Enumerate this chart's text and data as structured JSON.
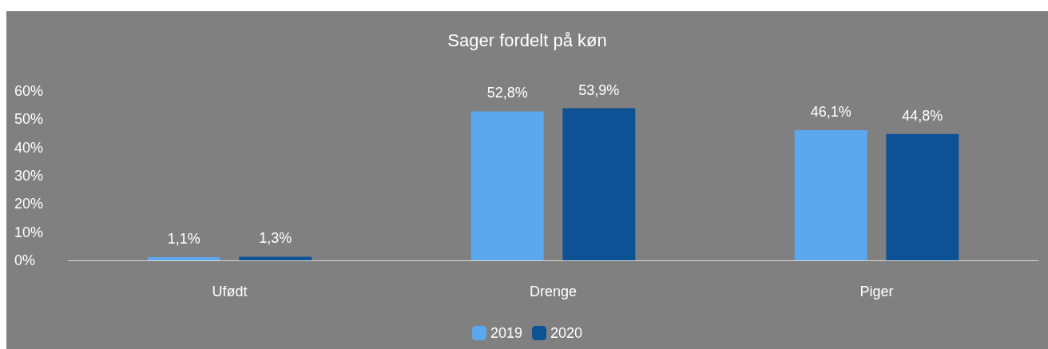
{
  "chart_data": {
    "type": "bar",
    "title": "Sager fordelt på køn",
    "categories": [
      "Ufødt",
      "Drenge",
      "Piger"
    ],
    "series": [
      {
        "name": "2019",
        "color": "#5ba8ef",
        "values": [
          1.1,
          52.8,
          46.1
        ],
        "value_labels": [
          "1,1%",
          "52,8%",
          "46,1%"
        ]
      },
      {
        "name": "2020",
        "color": "#0e5296",
        "values": [
          1.3,
          53.9,
          44.8
        ],
        "value_labels": [
          "1,3%",
          "53,9%",
          "44,8%"
        ]
      }
    ],
    "ylim": [
      0,
      60
    ],
    "yticks": [
      {
        "value": 0,
        "label": "0%"
      },
      {
        "value": 10,
        "label": "10%"
      },
      {
        "value": 20,
        "label": "20%"
      },
      {
        "value": 30,
        "label": "30%"
      },
      {
        "value": 40,
        "label": "40%"
      },
      {
        "value": 50,
        "label": "50%"
      },
      {
        "value": 60,
        "label": "60%"
      }
    ],
    "grid": false,
    "legend": "bottom"
  }
}
